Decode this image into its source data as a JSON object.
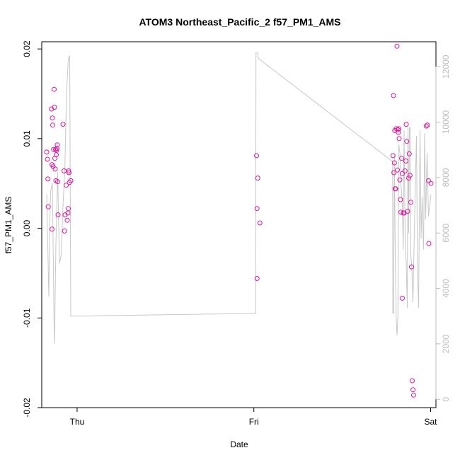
{
  "chart_data": {
    "type": "scatter",
    "title": "ATOM3 Northeast_Pacific_2 f57_PM1_AMS",
    "xlabel": "Date",
    "ylabel": "f57_PM1_AMS",
    "xlim": [
      -0.2,
      2.03
    ],
    "ylim": [
      -0.02,
      0.0208
    ],
    "y2lim": [
      -300,
      12900
    ],
    "x_ticks": [
      {
        "value": 0,
        "label": "Thu"
      },
      {
        "value": 1,
        "label": "Fri"
      },
      {
        "value": 2,
        "label": "Sat"
      }
    ],
    "y_ticks": [
      {
        "value": -0.02,
        "label": "-0.02"
      },
      {
        "value": -0.01,
        "label": "-0.01"
      },
      {
        "value": 0.0,
        "label": "0.00"
      },
      {
        "value": 0.01,
        "label": "0.01"
      },
      {
        "value": 0.02,
        "label": "0.02"
      }
    ],
    "y2_ticks": [
      {
        "value": 0,
        "label": "0"
      },
      {
        "value": 2000,
        "label": "2000"
      },
      {
        "value": 4000,
        "label": "4000"
      },
      {
        "value": 6000,
        "label": "6000"
      },
      {
        "value": 8000,
        "label": "8000"
      },
      {
        "value": 10000,
        "label": "10000"
      },
      {
        "value": 12000,
        "label": "12000"
      }
    ],
    "grid": false,
    "series": [
      {
        "color": "#e0169a",
        "marker": "open-circle",
        "points": [
          [
            -0.172,
            0.0085
          ],
          [
            -0.168,
            0.0077
          ],
          [
            -0.165,
            0.0055
          ],
          [
            -0.163,
            0.0024
          ],
          [
            -0.145,
            0.0133
          ],
          [
            -0.142,
            0.0071
          ],
          [
            -0.14,
            0.0123
          ],
          [
            -0.138,
            0.0115
          ],
          [
            -0.136,
            0.0069
          ],
          [
            -0.133,
            0.0088
          ],
          [
            -0.13,
            0.0155
          ],
          [
            -0.128,
            0.0135
          ],
          [
            -0.126,
            0.0078
          ],
          [
            -0.124,
            0.0066
          ],
          [
            -0.122,
            0.0088
          ],
          [
            -0.12,
            0.0053
          ],
          [
            -0.118,
            0.0082
          ],
          [
            -0.116,
            0.0087
          ],
          [
            -0.114,
            0.0089
          ],
          [
            -0.112,
            0.0093
          ],
          [
            -0.11,
            0.0052
          ],
          [
            -0.108,
            0.0015
          ],
          [
            -0.142,
            -0.0001
          ],
          [
            -0.08,
            0.0116
          ],
          [
            -0.074,
            0.0064
          ],
          [
            -0.071,
            -0.0003
          ],
          [
            -0.068,
            0.0015
          ],
          [
            -0.062,
            0.0048
          ],
          [
            -0.056,
            0.0009
          ],
          [
            -0.052,
            0.0017
          ],
          [
            -0.048,
            0.0064
          ],
          [
            -0.046,
            0.0062
          ],
          [
            -0.044,
            0.0051
          ],
          [
            -0.05,
            0.0022
          ],
          [
            -0.036,
            0.0053
          ],
          [
            1.015,
            0.0081
          ],
          [
            1.022,
            0.0056
          ],
          [
            1.018,
            0.0022
          ],
          [
            1.034,
            0.0006
          ],
          [
            1.018,
            -0.0056
          ],
          [
            1.787,
            0.0081
          ],
          [
            1.79,
            0.0148
          ],
          [
            1.792,
            0.0062
          ],
          [
            1.795,
            0.0073
          ],
          [
            1.797,
            0.0109
          ],
          [
            1.799,
            0.0044
          ],
          [
            1.802,
            0.0044
          ],
          [
            1.805,
            0.0111
          ],
          [
            1.81,
            0.0203
          ],
          [
            1.812,
            0.0065
          ],
          [
            1.815,
            0.011
          ],
          [
            1.818,
            0.0107
          ],
          [
            1.82,
            0.0111
          ],
          [
            1.822,
            0.01
          ],
          [
            1.826,
            0.0054
          ],
          [
            1.83,
            0.0032
          ],
          [
            1.832,
            0.0018
          ],
          [
            1.836,
            0.0078
          ],
          [
            1.84,
            0.0061
          ],
          [
            1.845,
            0.0017
          ],
          [
            1.85,
            0.0017
          ],
          [
            1.855,
            0.0064
          ],
          [
            1.86,
            0.0075
          ],
          [
            1.862,
            0.0116
          ],
          [
            1.865,
            0.0097
          ],
          [
            1.87,
            0.0019
          ],
          [
            1.876,
            0.0056
          ],
          [
            1.879,
            0.0083
          ],
          [
            1.883,
            0.0059
          ],
          [
            1.888,
            0.0029
          ],
          [
            1.892,
            -0.0043
          ],
          [
            1.896,
            -0.017
          ],
          [
            1.9,
            -0.018
          ],
          [
            1.904,
            -0.0186
          ],
          [
            1.84,
            -0.0078
          ],
          [
            1.975,
            0.0114
          ],
          [
            1.982,
            0.0115
          ],
          [
            1.988,
            0.0053
          ],
          [
            1.99,
            -0.0017
          ],
          [
            2.002,
            0.005
          ]
        ]
      },
      {
        "axis": "right",
        "color": "#c8c8c8",
        "type": "line",
        "points": [
          [
            -0.172,
            7400
          ],
          [
            -0.16,
            3700
          ],
          [
            -0.155,
            6200
          ],
          [
            -0.15,
            7500
          ],
          [
            -0.14,
            7800
          ],
          [
            -0.13,
            2500
          ],
          [
            -0.128,
            2000
          ],
          [
            -0.12,
            5600
          ],
          [
            -0.11,
            8200
          ],
          [
            -0.1,
            4900
          ],
          [
            -0.09,
            5200
          ],
          [
            -0.08,
            7000
          ],
          [
            -0.07,
            8200
          ],
          [
            -0.06,
            11000
          ],
          [
            -0.05,
            12300
          ],
          [
            -0.042,
            12400
          ],
          [
            -0.036,
            3000
          ],
          [
            1.01,
            3100
          ],
          [
            1.012,
            12500
          ],
          [
            1.022,
            12500
          ],
          [
            1.025,
            12300
          ],
          [
            1.78,
            8600
          ],
          [
            1.785,
            8600
          ],
          [
            1.786,
            3100
          ],
          [
            1.79,
            3100
          ],
          [
            1.795,
            8800
          ],
          [
            1.8,
            5000
          ],
          [
            1.805,
            3000
          ],
          [
            1.81,
            2300
          ],
          [
            1.815,
            3000
          ],
          [
            1.82,
            9200
          ],
          [
            1.826,
            8900
          ],
          [
            1.832,
            7800
          ],
          [
            1.84,
            7000
          ],
          [
            1.845,
            5400
          ],
          [
            1.85,
            9700
          ],
          [
            1.856,
            5800
          ],
          [
            1.862,
            4900
          ],
          [
            1.868,
            3300
          ],
          [
            1.872,
            9800
          ],
          [
            1.876,
            6000
          ],
          [
            1.88,
            9800
          ],
          [
            1.884,
            9800
          ],
          [
            1.888,
            5200
          ],
          [
            1.894,
            4700
          ],
          [
            1.9,
            3500
          ],
          [
            1.905,
            5200
          ],
          [
            1.912,
            7300
          ],
          [
            1.92,
            9500
          ],
          [
            1.926,
            4700
          ],
          [
            1.932,
            3300
          ],
          [
            1.94,
            9700
          ],
          [
            1.946,
            5800
          ],
          [
            1.952,
            7300
          ],
          [
            1.96,
            5400
          ],
          [
            1.966,
            9600
          ],
          [
            1.972,
            6500
          ],
          [
            1.98,
            8900
          ],
          [
            1.988,
            6600
          ],
          [
            2.002,
            7400
          ]
        ]
      }
    ]
  }
}
